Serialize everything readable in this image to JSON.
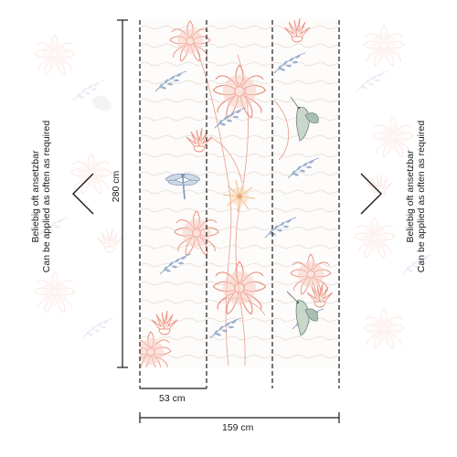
{
  "labels": {
    "left_line1": "Beliebig oft ansetzbar",
    "left_line2": "Can be applied as often as required",
    "right_line1": "Beliebig oft ansetzbar",
    "right_line2": "Can be applied as often as required",
    "height": "280 cm",
    "panel_width": "53 cm",
    "total_width": "159 cm"
  },
  "icons": {
    "left_arrow": "chevron-left-icon",
    "right_arrow": "chevron-right-icon",
    "dragonfly": "dragonfly-icon",
    "hummingbird": "hummingbird-icon"
  },
  "colors": {
    "coral": "#f0a898",
    "coral_dark": "#e88a7a",
    "blue_grey": "#8aa3c4",
    "peach": "#f6c39a",
    "line": "#1a1a1a",
    "wave": "#ece8e3"
  }
}
